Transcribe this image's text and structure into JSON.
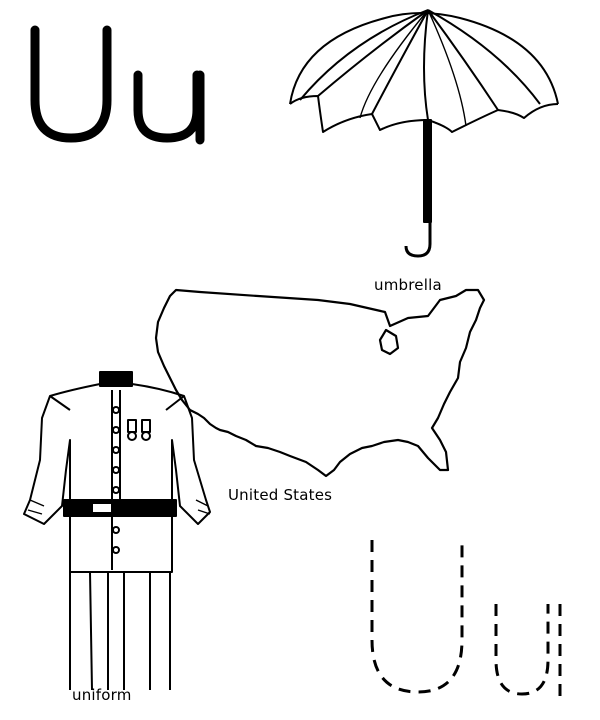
{
  "header": {
    "letters": "Uu"
  },
  "items": [
    {
      "label": "umbrella"
    },
    {
      "label": "United States"
    },
    {
      "label": "uniform"
    }
  ],
  "tracing": {
    "letters": "Uu"
  },
  "colors": {
    "ink": "#000000",
    "paper": "#ffffff"
  }
}
